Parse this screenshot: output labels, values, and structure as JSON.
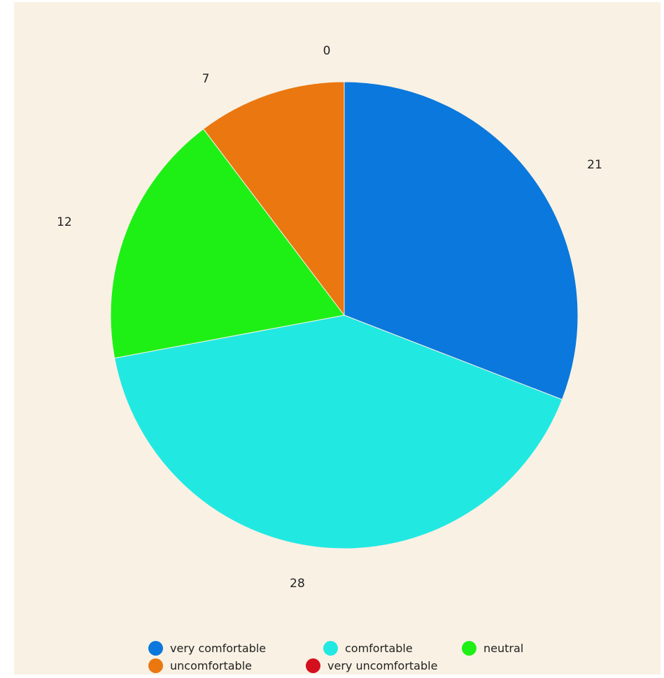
{
  "chart_data": {
    "type": "pie",
    "categories": [
      "very comfortable",
      "comfortable",
      "neutral",
      "uncomfortable",
      "very uncomfortable"
    ],
    "values": [
      21,
      28,
      12,
      7,
      0
    ],
    "colors": [
      "#0a78dc",
      "#22e8e2",
      "#1ef016",
      "#ea770f",
      "#d5101e"
    ],
    "data_labels": [
      "21",
      "28",
      "12",
      "7",
      "0"
    ],
    "start_angle": "12 o'clock",
    "direction": "clockwise",
    "legend_position": "bottom",
    "background": "#f9f1e4"
  }
}
